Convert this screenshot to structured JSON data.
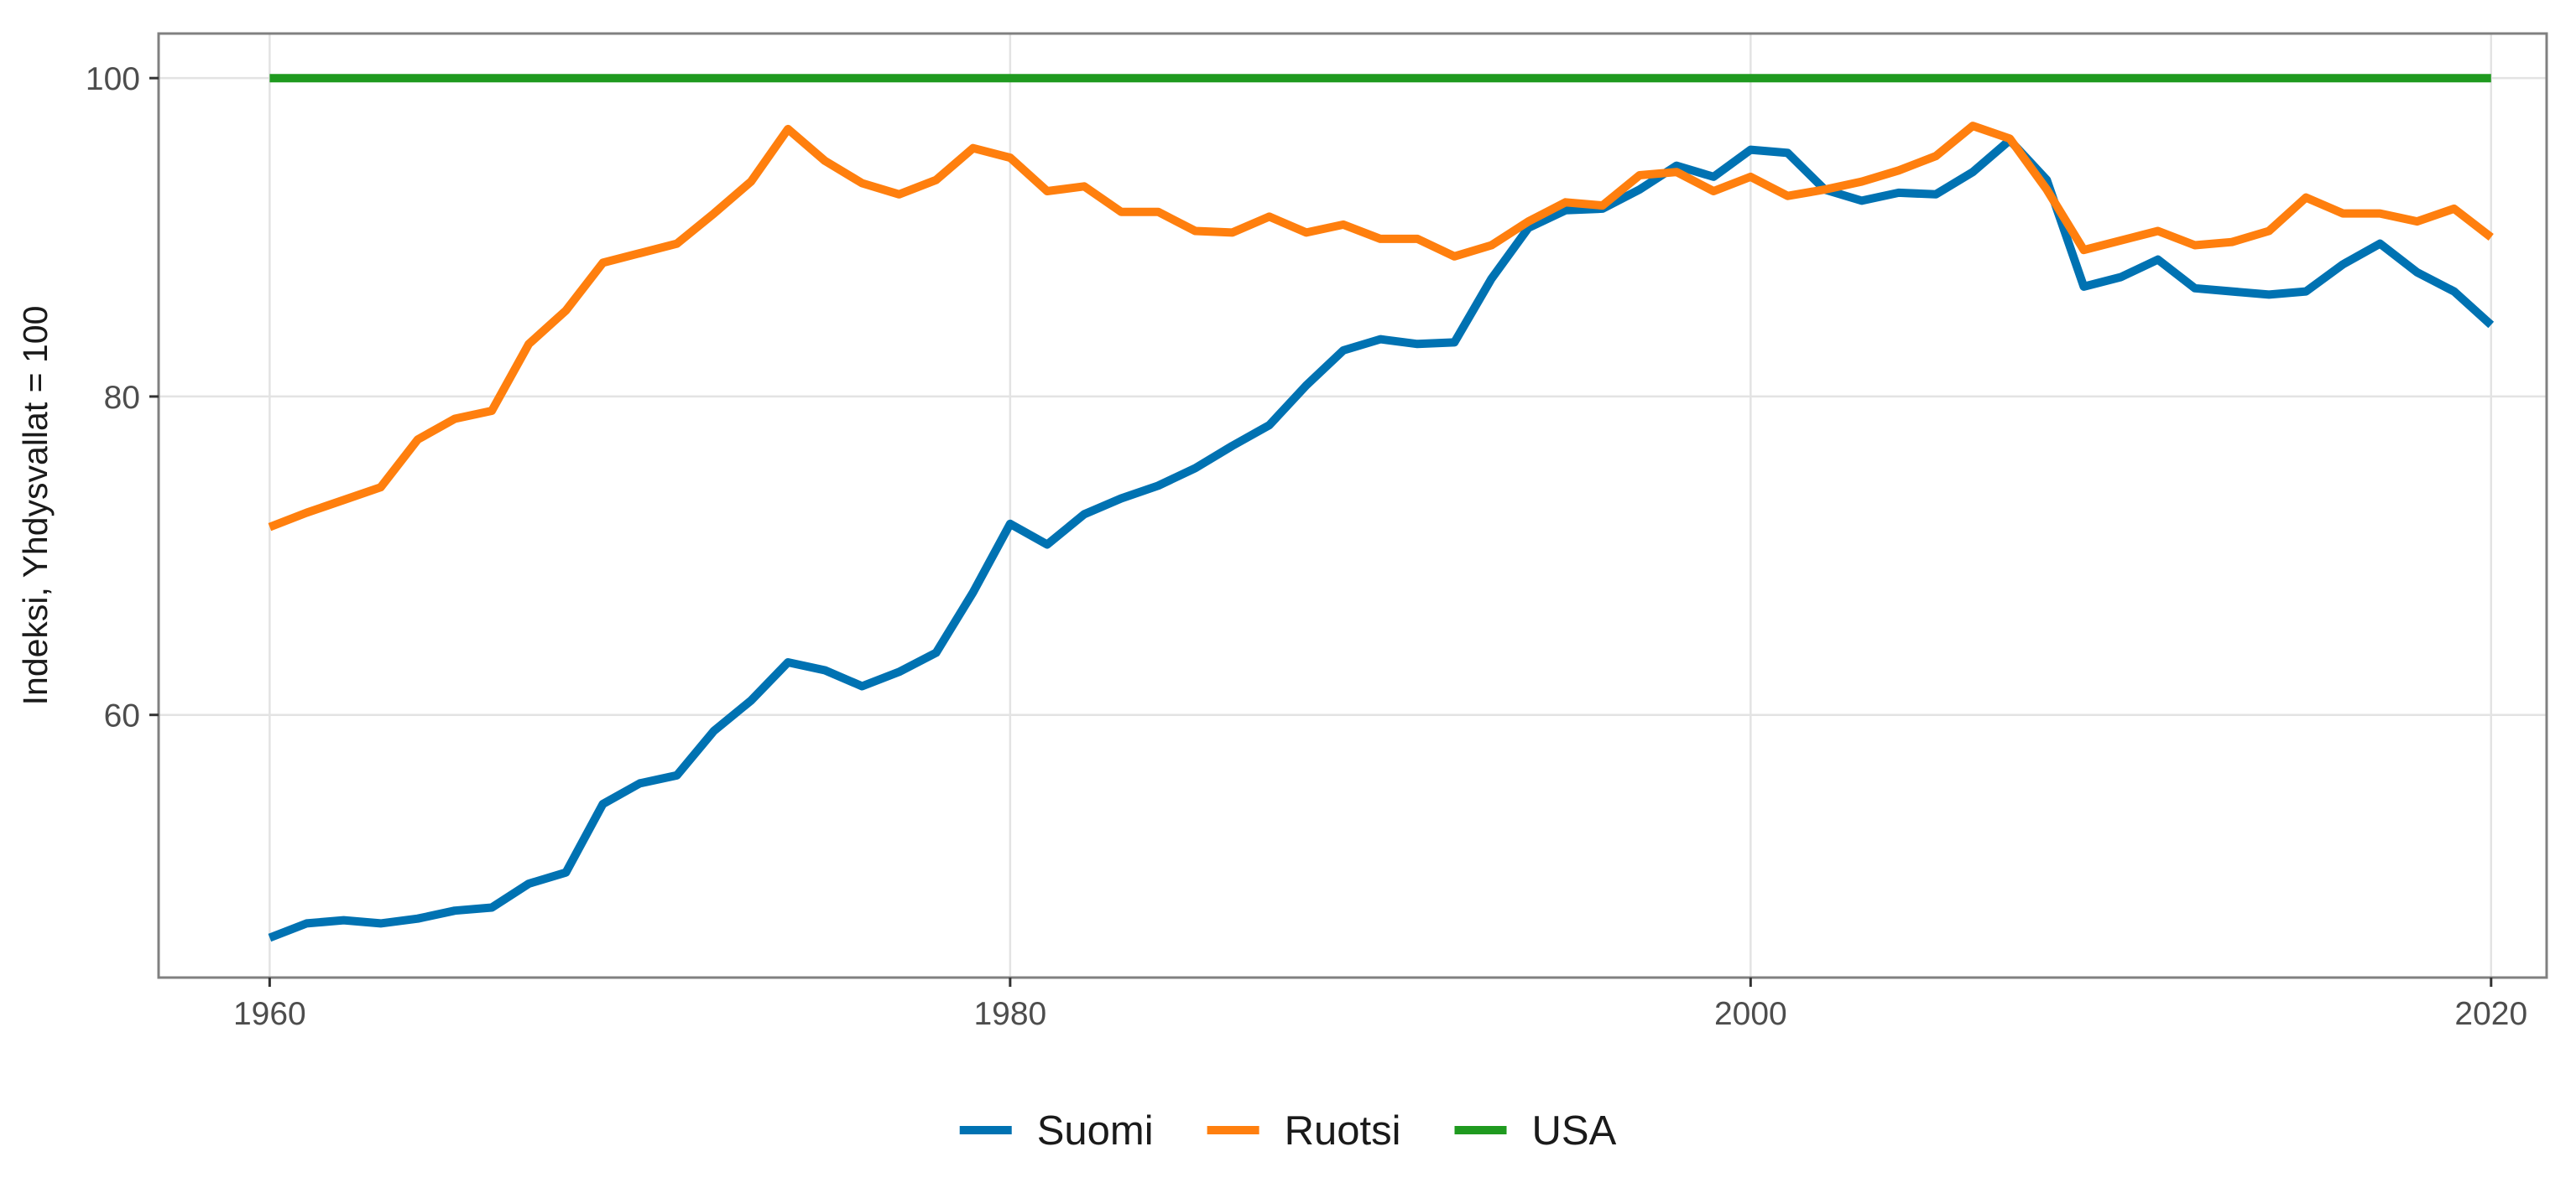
{
  "chart_data": {
    "type": "line",
    "title": "",
    "xlabel": "",
    "ylabel": "Indeksi, Yhdysvallat = 100",
    "xlim": [
      1957,
      2021.5
    ],
    "ylim": [
      43.5,
      102.8
    ],
    "x_ticks": [
      1960,
      1980,
      2000,
      2020
    ],
    "y_ticks": [
      60,
      80,
      100
    ],
    "grid": true,
    "legend_position": "bottom",
    "x": [
      1960,
      1961,
      1962,
      1963,
      1964,
      1965,
      1966,
      1967,
      1968,
      1969,
      1970,
      1971,
      1972,
      1973,
      1974,
      1975,
      1976,
      1977,
      1978,
      1979,
      1980,
      1981,
      1982,
      1983,
      1984,
      1985,
      1986,
      1987,
      1988,
      1989,
      1990,
      1991,
      1992,
      1993,
      1994,
      1995,
      1996,
      1997,
      1998,
      1999,
      2000,
      2001,
      2002,
      2003,
      2004,
      2005,
      2006,
      2007,
      2008,
      2009,
      2010,
      2011,
      2012,
      2013,
      2014,
      2015,
      2016,
      2017,
      2018,
      2019,
      2020
    ],
    "series": [
      {
        "name": "Suomi",
        "color": "#0072b2",
        "values": [
          46.0,
          46.9,
          47.1,
          46.9,
          47.2,
          47.7,
          47.9,
          49.4,
          50.1,
          54.4,
          55.7,
          56.2,
          59.0,
          60.9,
          63.3,
          62.8,
          61.8,
          62.7,
          63.9,
          67.7,
          72.0,
          70.7,
          72.6,
          73.6,
          74.4,
          75.5,
          76.9,
          78.2,
          80.7,
          82.9,
          83.6,
          83.3,
          83.4,
          87.4,
          90.6,
          91.7,
          91.8,
          93.0,
          94.5,
          93.8,
          95.5,
          95.3,
          93.0,
          92.3,
          92.8,
          92.7,
          94.1,
          96.1,
          93.6,
          86.9,
          87.5,
          88.6,
          86.8,
          86.6,
          86.4,
          86.6,
          88.3,
          89.6,
          87.8,
          86.6,
          84.5
        ]
      },
      {
        "name": "Ruotsi",
        "color": "#ff7f0e",
        "values": [
          71.8,
          72.7,
          73.5,
          74.3,
          77.3,
          78.6,
          79.1,
          83.3,
          85.4,
          88.4,
          89.0,
          89.6,
          91.5,
          93.5,
          96.8,
          94.8,
          93.4,
          92.7,
          93.6,
          95.6,
          95.0,
          92.9,
          93.2,
          91.6,
          91.6,
          90.4,
          90.3,
          91.3,
          90.3,
          90.8,
          89.9,
          89.9,
          88.8,
          89.5,
          91.0,
          92.2,
          92.0,
          93.9,
          94.1,
          92.9,
          93.8,
          92.6,
          93.0,
          93.5,
          94.2,
          95.1,
          97.0,
          96.2,
          93.0,
          89.2,
          89.8,
          90.4,
          89.5,
          89.7,
          90.4,
          92.5,
          91.5,
          91.5,
          91.0,
          91.8,
          90.0
        ]
      },
      {
        "name": "USA",
        "color": "#1f9a1f",
        "values": [
          100,
          100,
          100,
          100,
          100,
          100,
          100,
          100,
          100,
          100,
          100,
          100,
          100,
          100,
          100,
          100,
          100,
          100,
          100,
          100,
          100,
          100,
          100,
          100,
          100,
          100,
          100,
          100,
          100,
          100,
          100,
          100,
          100,
          100,
          100,
          100,
          100,
          100,
          100,
          100,
          100,
          100,
          100,
          100,
          100,
          100,
          100,
          100,
          100,
          100,
          100,
          100,
          100,
          100,
          100,
          100,
          100,
          100,
          100,
          100,
          100
        ]
      }
    ]
  }
}
